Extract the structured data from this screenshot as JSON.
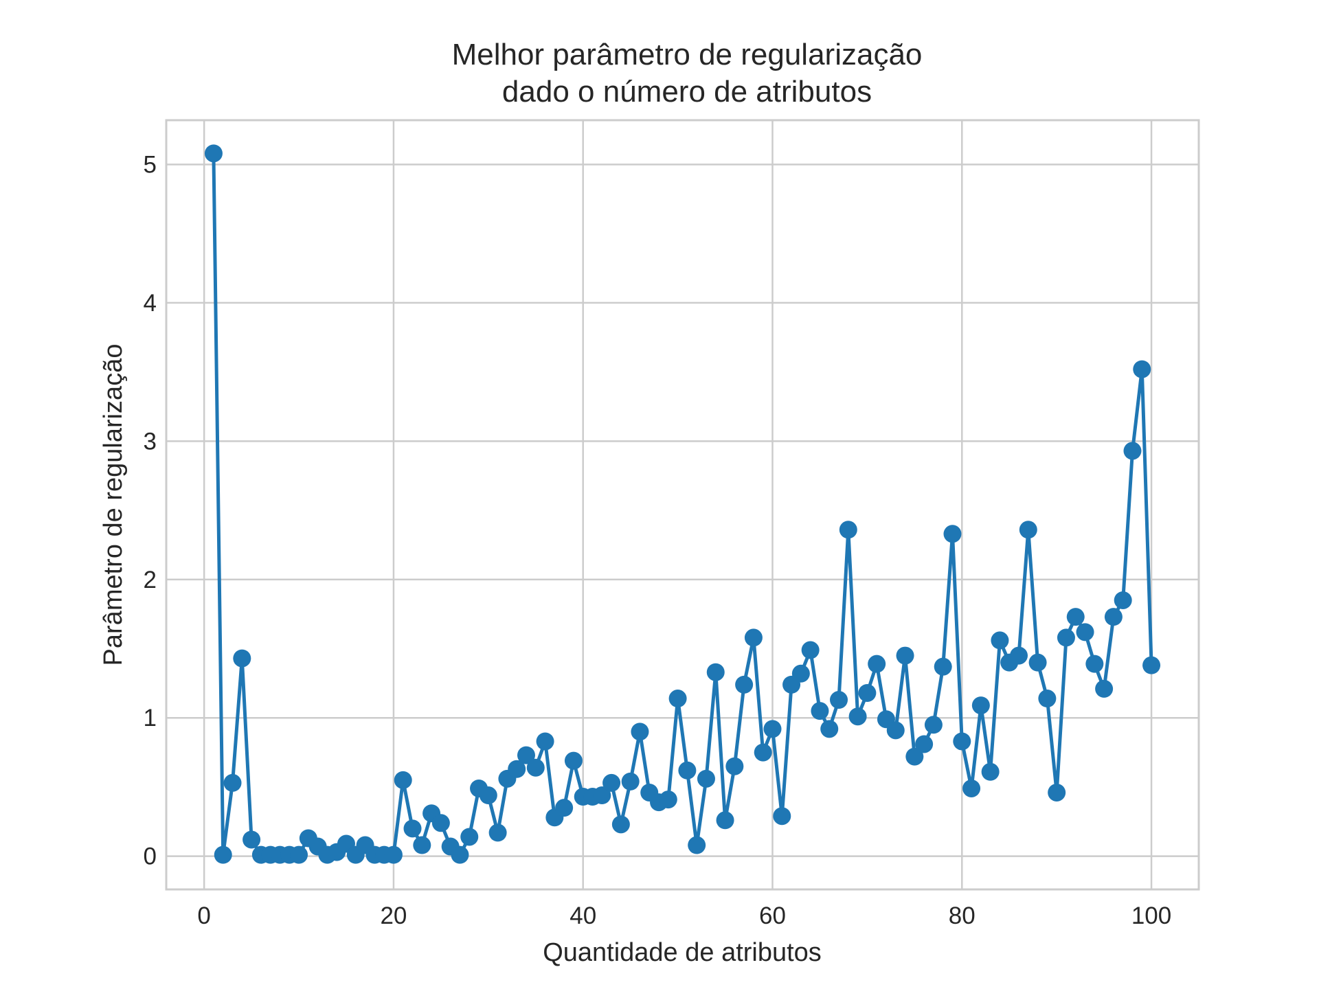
{
  "chart_data": {
    "type": "line",
    "title": [
      "Melhor parâmetro de regularização",
      "dado o número de atributos"
    ],
    "xlabel": "Quantidade de atributos",
    "ylabel": "Parâmetro de regularização",
    "xlim": [
      -4,
      105
    ],
    "ylim": [
      -0.24,
      5.32
    ],
    "xticks": [
      0,
      20,
      40,
      60,
      80,
      100
    ],
    "yticks": [
      0,
      1,
      2,
      3,
      4,
      5
    ],
    "grid": true,
    "marker": "circle",
    "color": "#1f77b4",
    "series": [
      {
        "x": [
          1,
          2,
          3,
          4,
          5,
          6,
          7,
          8,
          9,
          10,
          11,
          12,
          13,
          14,
          15,
          16,
          17,
          18,
          19,
          20,
          21,
          22,
          23,
          24,
          25,
          26,
          27,
          28,
          29,
          30,
          31,
          32,
          33,
          34,
          35,
          36,
          37,
          38,
          39,
          40,
          41,
          42,
          43,
          44,
          45,
          46,
          47,
          48,
          49,
          50,
          51,
          52,
          53,
          54,
          55,
          56,
          57,
          58,
          59,
          60,
          61,
          62,
          63,
          64,
          65,
          66,
          67,
          68,
          69,
          70,
          71,
          72,
          73,
          74,
          75,
          76,
          77,
          78,
          79,
          80,
          81,
          82,
          83,
          84,
          85,
          86,
          87,
          88,
          89,
          90,
          91,
          92,
          93,
          94,
          95,
          96,
          97,
          98,
          99,
          100
        ],
        "y": [
          5.08,
          0.01,
          0.53,
          1.43,
          0.12,
          0.01,
          0.01,
          0.01,
          0.01,
          0.01,
          0.13,
          0.07,
          0.01,
          0.03,
          0.09,
          0.01,
          0.08,
          0.01,
          0.01,
          0.01,
          0.55,
          0.2,
          0.08,
          0.31,
          0.24,
          0.07,
          0.01,
          0.14,
          0.49,
          0.44,
          0.17,
          0.56,
          0.63,
          0.73,
          0.64,
          0.83,
          0.28,
          0.35,
          0.69,
          0.43,
          0.43,
          0.44,
          0.53,
          0.23,
          0.54,
          0.9,
          0.46,
          0.39,
          0.41,
          1.14,
          0.62,
          0.08,
          0.56,
          1.33,
          0.26,
          0.65,
          1.24,
          1.58,
          0.75,
          0.92,
          0.29,
          1.24,
          1.32,
          1.49,
          1.05,
          0.92,
          1.13,
          2.36,
          1.01,
          1.18,
          1.39,
          0.99,
          0.91,
          1.45,
          0.72,
          0.81,
          0.95,
          1.37,
          2.33,
          0.83,
          0.49,
          1.09,
          0.61,
          1.56,
          1.4,
          1.45,
          2.36,
          1.4,
          1.14,
          0.46,
          1.58,
          1.73,
          1.62,
          1.39,
          1.21,
          1.73,
          1.85,
          2.93,
          3.52,
          1.38
        ]
      }
    ]
  }
}
